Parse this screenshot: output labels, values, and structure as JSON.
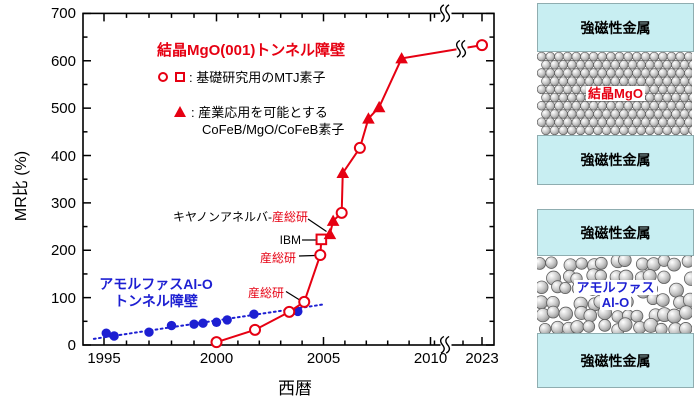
{
  "chart_data": {
    "type": "scatter",
    "title": "結晶MgO(001)トンネル障壁",
    "xlabel": "西暦",
    "ylabel": "MR比 (%)",
    "x_ticks": [
      1995,
      2000,
      2005,
      2010,
      2023
    ],
    "x_axis_break_between": [
      2010,
      2023
    ],
    "y_ticks": [
      0,
      100,
      200,
      300,
      400,
      500,
      600,
      700
    ],
    "ylim": [
      0,
      700
    ],
    "grid": false,
    "legend": {
      "open_markers_symbols": "○ □",
      "open_markers_label": ": 基礎研究用のMTJ素子",
      "triangle_symbol": "▲",
      "triangle_label_line1": ": 産業応用を可能とする",
      "triangle_label_line2": "CoFeB/MgO/CoFeB素子"
    },
    "series": [
      {
        "name": "アモルファスAl-Oトンネル障壁",
        "label_line1": "アモルファスAl-O",
        "label_line2": "トンネル障壁",
        "color": "#1d1fd2",
        "marker": "filled-circle",
        "line_style": "dotted-trend",
        "points": [
          [
            1995.1,
            25
          ],
          [
            1995.45,
            19
          ],
          [
            1997,
            27
          ],
          [
            1998,
            41
          ],
          [
            1999,
            44
          ],
          [
            1999.4,
            46
          ],
          [
            2000,
            48
          ],
          [
            2000.5,
            53
          ],
          [
            2001.75,
            65
          ],
          [
            2003.8,
            71
          ]
        ],
        "trend_line": [
          [
            1994.55,
            13
          ],
          [
            2005.05,
            86
          ]
        ]
      },
      {
        "name": "結晶MgO(001)トンネル障壁",
        "color": "#e60012",
        "line_style": "solid",
        "points": [
          {
            "x": 2000,
            "y": 6,
            "marker": "open-circle"
          },
          {
            "x": 2001.8,
            "y": 32,
            "marker": "open-circle"
          },
          {
            "x": 2003.4,
            "y": 70,
            "marker": "open-circle"
          },
          {
            "x": 2004.1,
            "y": 91,
            "marker": "open-circle",
            "label": "産総研"
          },
          {
            "x": 2004.85,
            "y": 190,
            "marker": "open-circle",
            "label": "産総研"
          },
          {
            "x": 2004.9,
            "y": 223,
            "marker": "open-square",
            "label": "IBM"
          },
          {
            "x": 2005.3,
            "y": 234,
            "marker": "triangle",
            "label": "キヤノンアネルバ-産総研"
          },
          {
            "x": 2005.45,
            "y": 262,
            "marker": "triangle"
          },
          {
            "x": 2005.85,
            "y": 279,
            "marker": "open-circle"
          },
          {
            "x": 2005.9,
            "y": 363,
            "marker": "triangle"
          },
          {
            "x": 2006.7,
            "y": 416,
            "marker": "open-circle"
          },
          {
            "x": 2007.1,
            "y": 478,
            "marker": "triangle"
          },
          {
            "x": 2007.6,
            "y": 502,
            "marker": "triangle"
          },
          {
            "x": 2008.65,
            "y": 605,
            "marker": "triangle"
          },
          {
            "x": 2023,
            "y": 633,
            "marker": "open-circle"
          }
        ]
      }
    ],
    "annotations": [
      {
        "black": "キヤノンアネルバ-",
        "red": "産総研"
      },
      {
        "black": "IBM",
        "red": ""
      },
      {
        "black": "",
        "red": "産総研"
      },
      {
        "black": "",
        "red": "産総研"
      }
    ]
  },
  "panels": [
    {
      "top_label": "強磁性金属",
      "barrier_label": "結晶MgO",
      "barrier_label2": "",
      "bottom_label": "強磁性金属",
      "structure": "crystal",
      "label_color": "#e60012"
    },
    {
      "top_label": "強磁性金属",
      "barrier_label": "アモルファス",
      "barrier_label2": "Al-O",
      "bottom_label": "強磁性金属",
      "structure": "amorphous",
      "label_color": "#1d1fd2"
    }
  ],
  "colors": {
    "red": "#e60012",
    "blue": "#1d1fd2",
    "cyan": "#c8eef2",
    "axis": "#000000"
  }
}
